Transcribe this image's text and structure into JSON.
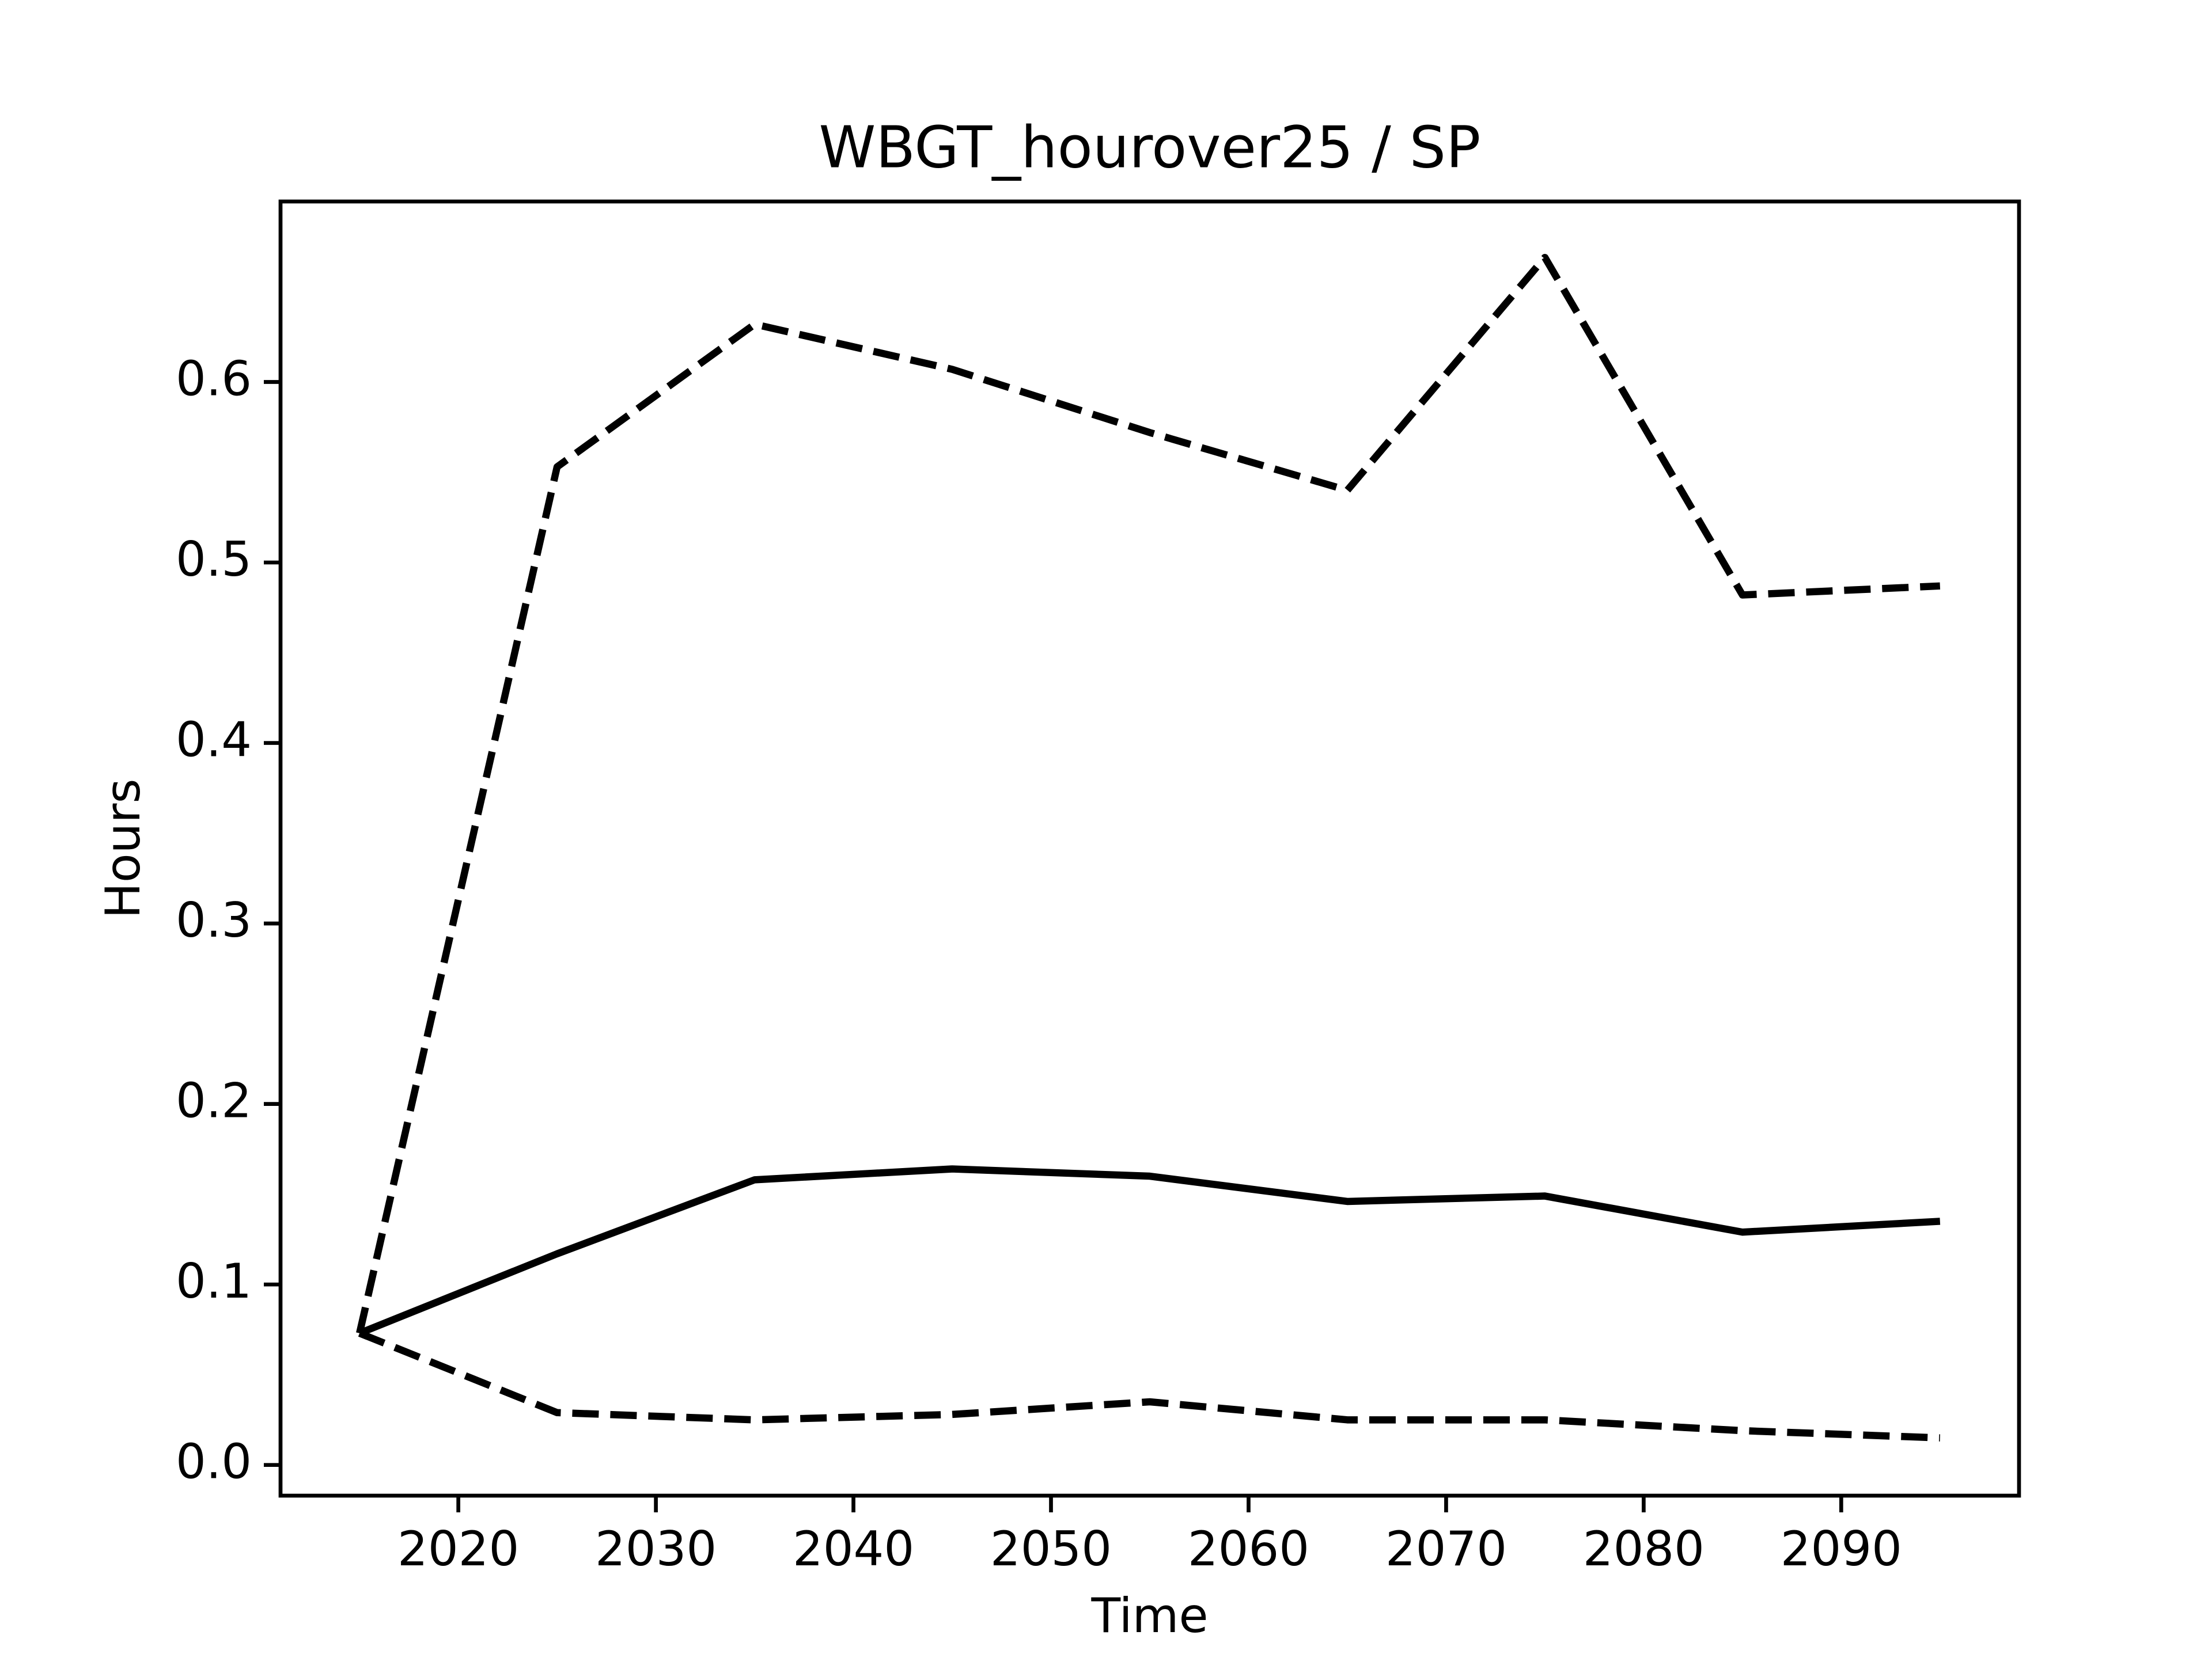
{
  "chart_data": {
    "type": "line",
    "title": "WBGT_hourover25 / SP",
    "xlabel": "Time",
    "ylabel": "Hours",
    "x": [
      2015,
      2025,
      2035,
      2045,
      2055,
      2065,
      2075,
      2085,
      2095
    ],
    "series": [
      {
        "color": "#000000",
        "style": "solid",
        "values": [
          0.073,
          0.117,
          0.158,
          0.164,
          0.16,
          0.146,
          0.149,
          0.129,
          0.135
        ]
      },
      {
        "color": "#000000",
        "style": "dashed",
        "values": [
          0.073,
          0.553,
          0.632,
          0.607,
          0.572,
          0.54,
          0.669,
          0.482,
          0.487
        ]
      },
      {
        "color": "#000000",
        "style": "dashed",
        "values": [
          0.073,
          0.029,
          0.025,
          0.028,
          0.035,
          0.025,
          0.025,
          0.019,
          0.015
        ]
      }
    ],
    "xlim": [
      2011,
      2099
    ],
    "ylim": [
      -0.017,
      0.7
    ],
    "xticks": [
      2020,
      2030,
      2040,
      2050,
      2060,
      2070,
      2080,
      2090
    ],
    "yticks": [
      {
        "value": 0,
        "label": "0.0"
      },
      0.1,
      0.2,
      0.3,
      0.4,
      0.5,
      0.6
    ],
    "grid": false
  }
}
